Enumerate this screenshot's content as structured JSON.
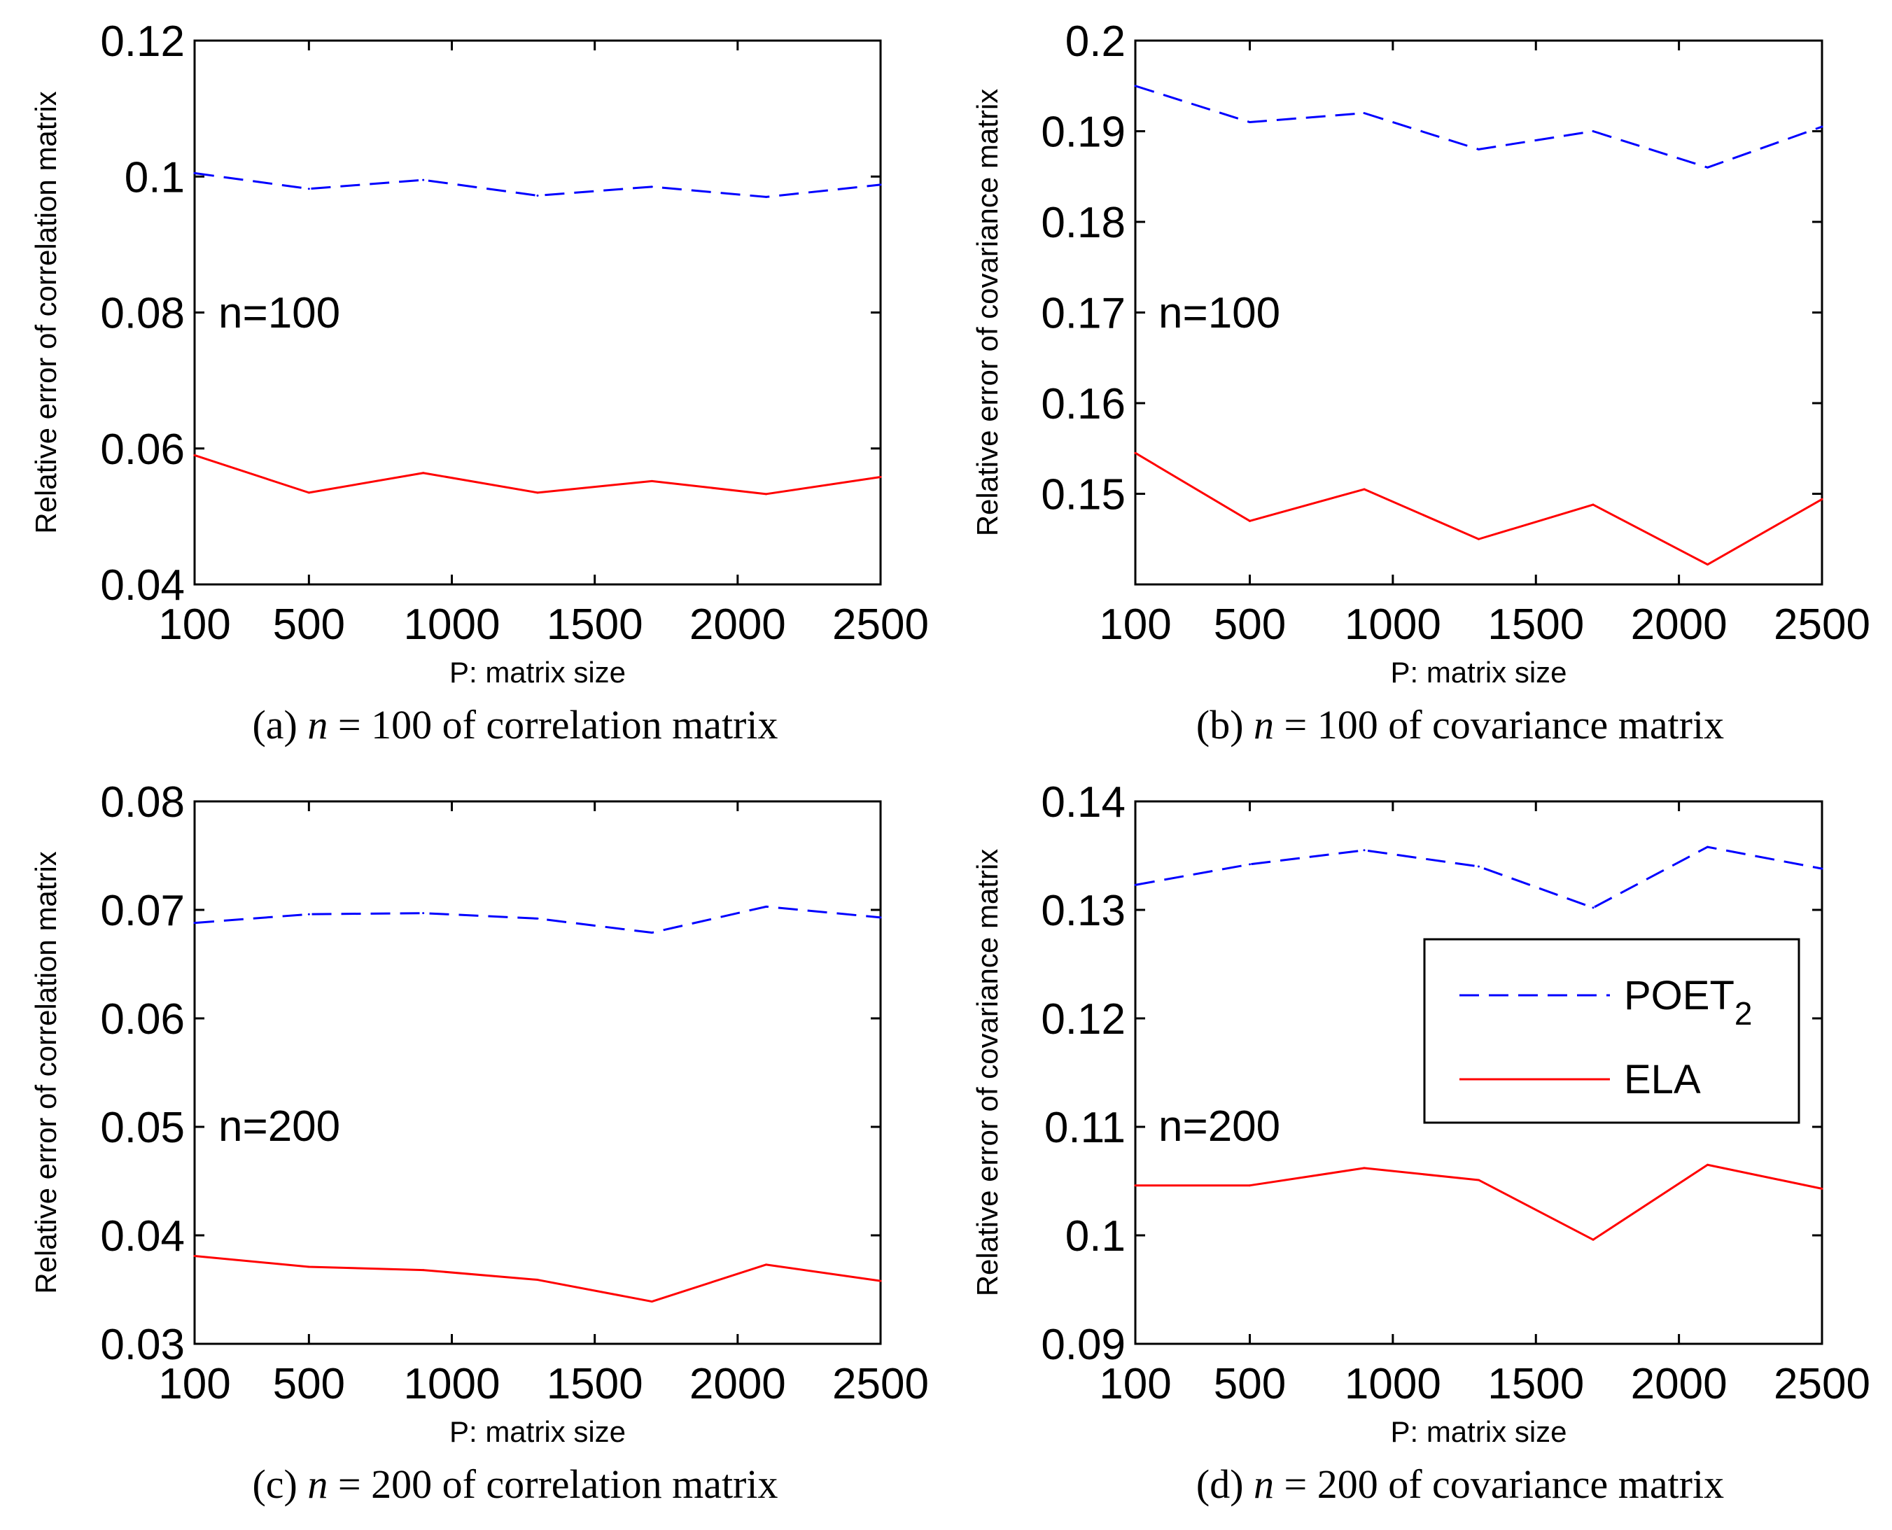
{
  "chart_data": [
    {
      "type": "line",
      "id": "a",
      "caption_prefix": "(a) ",
      "caption_n": "n",
      "caption_suffix": " = 100 of correlation matrix",
      "annotation": "n=100",
      "xlabel": "P: matrix size",
      "ylabel": "Relative error of correlation matrix",
      "xlim": [
        100,
        2500
      ],
      "ylim": [
        0.04,
        0.12
      ],
      "x_ticks": [
        100,
        500,
        1000,
        1500,
        2000,
        2500
      ],
      "x_tick_labels": [
        "100",
        "500",
        "1000",
        "1500",
        "2000",
        "2500"
      ],
      "y_ticks": [
        0.04,
        0.06,
        0.08,
        0.1,
        0.12
      ],
      "y_tick_labels": [
        "0.04",
        "0.06",
        "0.08",
        "0.1",
        "0.12"
      ],
      "x": [
        100,
        500,
        900,
        1300,
        1700,
        2100,
        2500
      ],
      "series": [
        {
          "name": "POET2",
          "style": "dashed",
          "color": "#0000ff",
          "values": [
            0.1005,
            0.0982,
            0.0995,
            0.0972,
            0.0985,
            0.097,
            0.0988
          ]
        },
        {
          "name": "ELA",
          "style": "solid",
          "color": "#ff0000",
          "values": [
            0.059,
            0.0535,
            0.0564,
            0.0535,
            0.0552,
            0.0533,
            0.0558
          ]
        }
      ],
      "legend": null
    },
    {
      "type": "line",
      "id": "b",
      "caption_prefix": "(b) ",
      "caption_n": "n",
      "caption_suffix": " = 100 of covariance matrix",
      "annotation": "n=100",
      "xlabel": "P: matrix size",
      "ylabel": "Relative error of covariance matrix",
      "xlim": [
        100,
        2500
      ],
      "ylim": [
        0.14,
        0.2
      ],
      "x_ticks": [
        100,
        500,
        1000,
        1500,
        2000,
        2500
      ],
      "x_tick_labels": [
        "100",
        "500",
        "1000",
        "1500",
        "2000",
        "2500"
      ],
      "y_ticks": [
        0.15,
        0.16,
        0.17,
        0.18,
        0.19,
        0.2
      ],
      "y_tick_labels": [
        "0.15",
        "0.16",
        "0.17",
        "0.18",
        "0.19",
        "0.2"
      ],
      "x": [
        100,
        500,
        900,
        1300,
        1700,
        2100,
        2500
      ],
      "series": [
        {
          "name": "POET2",
          "style": "dashed",
          "color": "#0000ff",
          "values": [
            0.195,
            0.191,
            0.192,
            0.188,
            0.19,
            0.186,
            0.1905
          ]
        },
        {
          "name": "ELA",
          "style": "solid",
          "color": "#ff0000",
          "values": [
            0.1545,
            0.147,
            0.1505,
            0.145,
            0.1488,
            0.1422,
            0.1494
          ]
        }
      ],
      "legend": null
    },
    {
      "type": "line",
      "id": "c",
      "caption_prefix": "(c) ",
      "caption_n": "n",
      "caption_suffix": " = 200 of correlation matrix",
      "annotation": "n=200",
      "xlabel": "P: matrix size",
      "ylabel": "Relative error of correlation matrix",
      "xlim": [
        100,
        2500
      ],
      "ylim": [
        0.03,
        0.08
      ],
      "x_ticks": [
        100,
        500,
        1000,
        1500,
        2000,
        2500
      ],
      "x_tick_labels": [
        "100",
        "500",
        "1000",
        "1500",
        "2000",
        "2500"
      ],
      "y_ticks": [
        0.03,
        0.04,
        0.05,
        0.06,
        0.07,
        0.08
      ],
      "y_tick_labels": [
        "0.03",
        "0.04",
        "0.05",
        "0.06",
        "0.07",
        "0.08"
      ],
      "x": [
        100,
        500,
        900,
        1300,
        1700,
        2100,
        2500
      ],
      "series": [
        {
          "name": "POET2",
          "style": "dashed",
          "color": "#0000ff",
          "values": [
            0.0688,
            0.0696,
            0.0697,
            0.0692,
            0.0679,
            0.0703,
            0.0693
          ]
        },
        {
          "name": "ELA",
          "style": "solid",
          "color": "#ff0000",
          "values": [
            0.0381,
            0.0371,
            0.0368,
            0.0359,
            0.0339,
            0.0373,
            0.0358
          ]
        }
      ],
      "legend": null
    },
    {
      "type": "line",
      "id": "d",
      "caption_prefix": "(d) ",
      "caption_n": "n",
      "caption_suffix": " = 200 of covariance matrix",
      "annotation": "n=200",
      "xlabel": "P: matrix size",
      "ylabel": "Relative error of covariance matrix",
      "xlim": [
        100,
        2500
      ],
      "ylim": [
        0.09,
        0.14
      ],
      "x_ticks": [
        100,
        500,
        1000,
        1500,
        2000,
        2500
      ],
      "x_tick_labels": [
        "100",
        "500",
        "1000",
        "1500",
        "2000",
        "2500"
      ],
      "y_ticks": [
        0.09,
        0.1,
        0.11,
        0.12,
        0.13,
        0.14
      ],
      "y_tick_labels": [
        "0.09",
        "0.1",
        "0.11",
        "0.12",
        "0.13",
        "0.14"
      ],
      "x": [
        100,
        500,
        900,
        1300,
        1700,
        2100,
        2500
      ],
      "series": [
        {
          "name": "POET2",
          "style": "dashed",
          "color": "#0000ff",
          "values": [
            0.1323,
            0.1342,
            0.1355,
            0.134,
            0.1302,
            0.1358,
            0.1338
          ]
        },
        {
          "name": "ELA",
          "style": "solid",
          "color": "#ff0000",
          "values": [
            0.1046,
            0.1046,
            0.1062,
            0.1051,
            0.0996,
            0.1065,
            0.1043
          ]
        }
      ],
      "legend": {
        "placement": "right",
        "entries": [
          {
            "label": "POET",
            "subscript": "2",
            "style": "dashed",
            "color": "#0000ff"
          },
          {
            "label": "ELA",
            "subscript": "",
            "style": "solid",
            "color": "#ff0000"
          }
        ]
      }
    }
  ]
}
